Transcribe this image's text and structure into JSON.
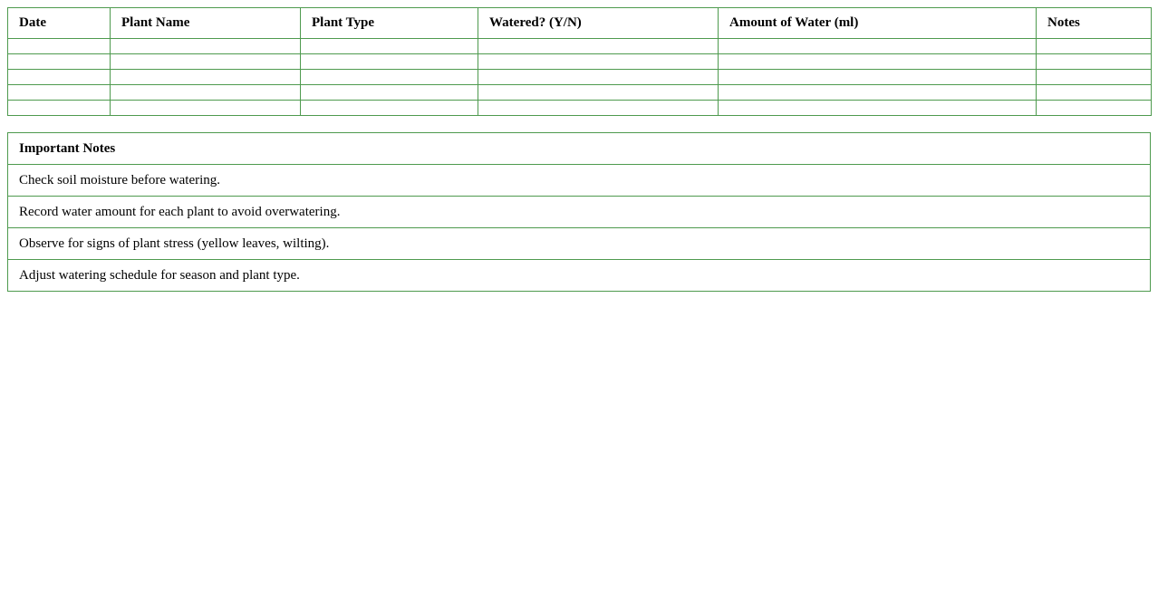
{
  "log_table": {
    "headers": [
      "Date",
      "Plant Name",
      "Plant Type",
      "Watered? (Y/N)",
      "Amount of Water (ml)",
      "Notes"
    ],
    "rows": [
      [
        "",
        "",
        "",
        "",
        "",
        ""
      ],
      [
        "",
        "",
        "",
        "",
        "",
        ""
      ],
      [
        "",
        "",
        "",
        "",
        "",
        ""
      ],
      [
        "",
        "",
        "",
        "",
        "",
        ""
      ],
      [
        "",
        "",
        "",
        "",
        "",
        ""
      ]
    ]
  },
  "notes_table": {
    "title": "Important Notes",
    "items": [
      "Check soil moisture before watering.",
      "Record water amount for each plant to avoid overwatering.",
      "Observe for signs of plant stress (yellow leaves, wilting).",
      "Adjust watering schedule for season and plant type."
    ]
  },
  "colors": {
    "border": "#4e9a4e"
  }
}
